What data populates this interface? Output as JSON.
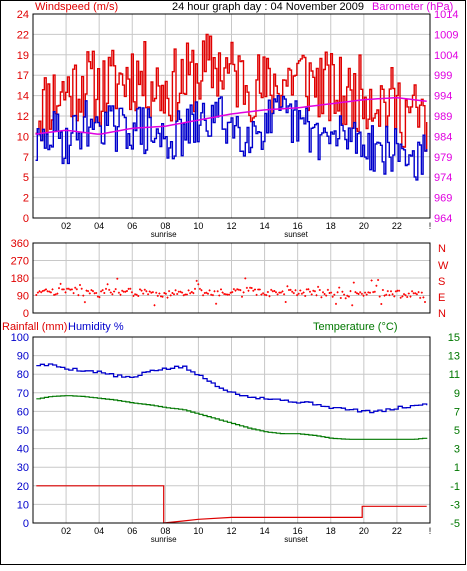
{
  "title": "24 hour graph day : 04 November 2009",
  "colors": {
    "wind": "#e00000",
    "barometer": "#e000e0",
    "humidity": "#0000cc",
    "temperature": "#007700",
    "rain": "#dd0000",
    "direction": "#ff0000",
    "grid": "#c8c8c8"
  },
  "chart_data": [
    {
      "type": "line",
      "title": "24 hour graph day : 04 November 2009",
      "ylabel": "Windspeed (m/s)",
      "y2label": "Barometer (hPa)",
      "xticks": [
        "02",
        "04",
        "06",
        "08",
        "10",
        "12",
        "14",
        "16",
        "18",
        "20",
        "22",
        "!"
      ],
      "xnotes": {
        "sunrise": "sunrise",
        "sunset": "sunset"
      },
      "sunrise_hour": 7.9,
      "sunset_hour": 15.9,
      "xlim": [
        0,
        24
      ],
      "ylim": [
        0,
        24
      ],
      "yticks": [
        "0",
        "2",
        "5",
        "7",
        "10",
        "12",
        "14",
        "17",
        "19",
        "22",
        "24"
      ],
      "y2lim": [
        964,
        1014
      ],
      "y2ticks": [
        "964",
        "969",
        "974",
        "979",
        "984",
        "989",
        "994",
        "999",
        "1004",
        "1009",
        "1014"
      ],
      "grid": true,
      "series": [
        {
          "name": "Windspeed (m/s)",
          "kind": "gust",
          "x": [
            0,
            1,
            2,
            3,
            4,
            5,
            6,
            7,
            8,
            9,
            10,
            11,
            12,
            13,
            14,
            15,
            16,
            17,
            18,
            19,
            20,
            21,
            22,
            23,
            24
          ],
          "values": [
            12,
            14,
            15,
            16,
            15,
            16,
            17,
            16,
            15,
            16,
            17,
            18,
            17,
            16,
            15,
            16,
            17,
            16,
            15,
            14,
            15,
            14,
            13,
            12,
            11
          ]
        },
        {
          "name": "Windspeed (m/s)",
          "kind": "average",
          "x": [
            0,
            1,
            2,
            3,
            4,
            5,
            6,
            7,
            8,
            9,
            10,
            11,
            12,
            13,
            14,
            15,
            16,
            17,
            18,
            19,
            20,
            21,
            22,
            23,
            24
          ],
          "values": [
            8,
            10,
            9,
            11,
            12,
            10,
            11,
            10,
            9,
            10,
            11,
            12,
            11,
            10,
            11,
            12,
            11,
            10,
            9,
            10,
            9,
            8,
            8,
            7,
            7
          ]
        },
        {
          "name": "Barometer (hPa)",
          "x": [
            0,
            2,
            4,
            6,
            8,
            10,
            12,
            14,
            16,
            18,
            20,
            22,
            24
          ],
          "values": [
            984.5,
            985.5,
            984.5,
            986,
            986.5,
            988,
            989.5,
            990.5,
            991,
            992,
            993,
            993.5,
            992.5
          ]
        }
      ]
    },
    {
      "type": "scatter",
      "ylabel": "Wind direction",
      "yticks": [
        "0",
        "90",
        "180",
        "270",
        "360"
      ],
      "compass": [
        "N",
        "W",
        "S",
        "E",
        "N"
      ],
      "xlim": [
        0,
        24
      ],
      "ylim": [
        0,
        360
      ],
      "grid": true,
      "series": [
        {
          "name": "Wind direction",
          "x": [
            0,
            1,
            2,
            3,
            4,
            5,
            6,
            7,
            8,
            9,
            10,
            11,
            12,
            13,
            14,
            15,
            16,
            17,
            18,
            19,
            20,
            21,
            22,
            23,
            24
          ],
          "values": [
            100,
            110,
            120,
            105,
            100,
            110,
            105,
            100,
            95,
            110,
            105,
            100,
            110,
            120,
            100,
            105,
            110,
            100,
            100,
            95,
            105,
            100,
            95,
            95,
            90
          ]
        }
      ]
    },
    {
      "type": "line",
      "ylabel": "Rainfall (mm)",
      "ylabel2": "Humidity %",
      "y2label": "Temperature (°C)",
      "xticks": [
        "02",
        "04",
        "06",
        "08",
        "10",
        "12",
        "14",
        "16",
        "18",
        "20",
        "22",
        "!"
      ],
      "xnotes": {
        "sunrise": "sunrise",
        "sunset": "sunset"
      },
      "xlim": [
        0,
        24
      ],
      "ylim": [
        0,
        100
      ],
      "yticks": [
        "0",
        "10",
        "20",
        "30",
        "40",
        "50",
        "60",
        "70",
        "80",
        "90",
        "100"
      ],
      "y2lim": [
        -5,
        15
      ],
      "y2ticks": [
        "-5",
        "-3",
        "-1",
        "1",
        "3",
        "5",
        "7",
        "9",
        "11",
        "13",
        "15"
      ],
      "grid": true,
      "series": [
        {
          "name": "Humidity %",
          "x": [
            0,
            1,
            2,
            3,
            4,
            5,
            6,
            7,
            8,
            9,
            10,
            11,
            12,
            13,
            14,
            15,
            16,
            17,
            18,
            19,
            20,
            21,
            22,
            23,
            24
          ],
          "values": [
            85,
            85,
            83,
            82,
            81,
            79,
            78,
            82,
            83,
            84,
            79,
            74,
            70,
            68,
            67,
            66,
            65,
            64,
            62,
            61,
            60,
            60,
            62,
            63,
            64
          ]
        },
        {
          "name": "Temperature (°C)",
          "x": [
            0,
            1,
            2,
            3,
            4,
            5,
            6,
            7,
            8,
            9,
            10,
            11,
            12,
            13,
            14,
            15,
            16,
            17,
            18,
            19,
            20,
            21,
            22,
            23,
            24
          ],
          "values": [
            8.3,
            8.6,
            8.7,
            8.6,
            8.4,
            8.2,
            7.9,
            7.7,
            7.4,
            7.2,
            6.7,
            6.2,
            5.7,
            5.2,
            4.8,
            4.6,
            4.6,
            4.4,
            4.1,
            4.0,
            4.0,
            4.0,
            4.0,
            4.0,
            4.2
          ]
        },
        {
          "name": "Rainfall (mm)",
          "x": [
            0,
            7.9,
            7.9,
            9.0,
            10.0,
            12.0,
            19.9,
            19.9,
            24
          ],
          "values": [
            20,
            20,
            0,
            1,
            2,
            3,
            3,
            9,
            9
          ]
        }
      ]
    }
  ]
}
